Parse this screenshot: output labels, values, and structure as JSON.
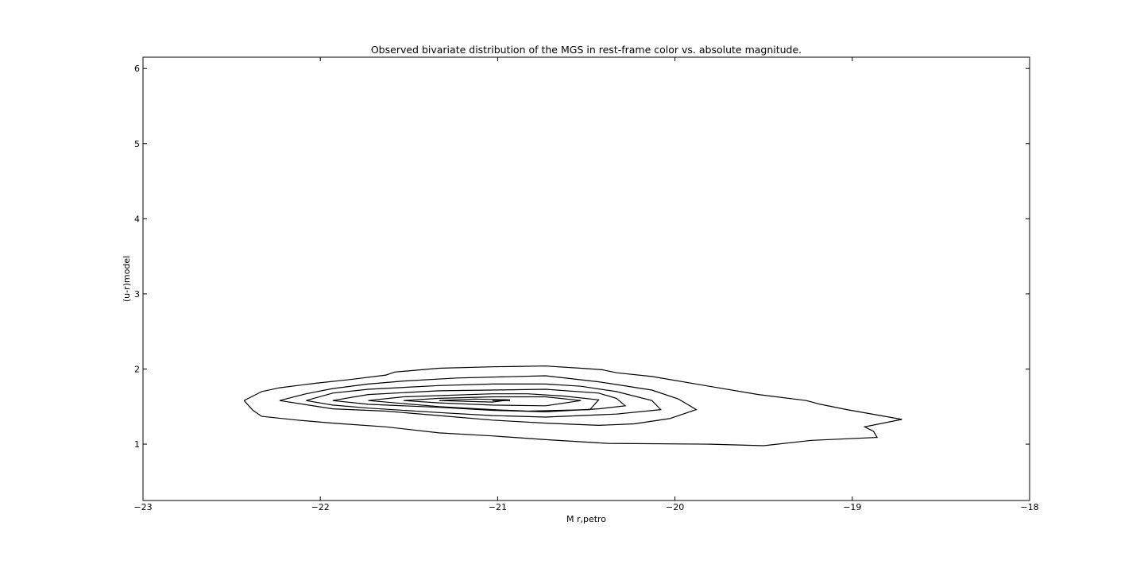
{
  "chart_data": {
    "type": "contour",
    "title": "Observed bivariate distribution of the MGS in rest-frame color vs. absolute magnitude.",
    "xlabel": "M r,petro",
    "ylabel": "(u-r)model",
    "xlim": [
      -23,
      -18
    ],
    "ylim": [
      0.25,
      6.15
    ],
    "xticks": [
      -23,
      -22,
      -21,
      -20,
      -19,
      -18
    ],
    "yticks": [
      1,
      2,
      3,
      4,
      5,
      6
    ],
    "xtick_labels": [
      "−23",
      "−22",
      "−21",
      "−20",
      "−19",
      "−18"
    ],
    "ytick_labels": [
      "1",
      "2",
      "3",
      "4",
      "5",
      "6"
    ],
    "grid": false,
    "series": [
      {
        "level": 1,
        "points": [
          [
            -22.43,
            1.58
          ],
          [
            -22.33,
            1.7
          ],
          [
            -22.23,
            1.75
          ],
          [
            -22.03,
            1.81
          ],
          [
            -21.83,
            1.86
          ],
          [
            -21.63,
            1.92
          ],
          [
            -21.58,
            1.96
          ],
          [
            -21.33,
            2.01
          ],
          [
            -21.03,
            2.03
          ],
          [
            -20.73,
            2.04
          ],
          [
            -20.53,
            2.01
          ],
          [
            -20.41,
            1.99
          ],
          [
            -20.33,
            1.95
          ],
          [
            -20.13,
            1.9
          ],
          [
            -19.83,
            1.78
          ],
          [
            -19.53,
            1.66
          ],
          [
            -19.26,
            1.58
          ],
          [
            -19.18,
            1.53
          ],
          [
            -19.03,
            1.46
          ],
          [
            -18.72,
            1.33
          ],
          [
            -18.93,
            1.23
          ],
          [
            -18.88,
            1.17
          ],
          [
            -18.86,
            1.09
          ],
          [
            -19.23,
            1.05
          ],
          [
            -19.5,
            0.98
          ],
          [
            -19.8,
            1.0
          ],
          [
            -20.38,
            1.01
          ],
          [
            -20.73,
            1.06
          ],
          [
            -21.03,
            1.11
          ],
          [
            -21.33,
            1.15
          ],
          [
            -21.63,
            1.23
          ],
          [
            -21.93,
            1.28
          ],
          [
            -22.13,
            1.32
          ],
          [
            -22.33,
            1.37
          ],
          [
            -22.38,
            1.45
          ],
          [
            -22.43,
            1.58
          ]
        ]
      },
      {
        "level": 2,
        "points": [
          [
            -22.23,
            1.58
          ],
          [
            -22.08,
            1.67
          ],
          [
            -21.93,
            1.74
          ],
          [
            -21.73,
            1.8
          ],
          [
            -21.53,
            1.84
          ],
          [
            -21.23,
            1.88
          ],
          [
            -20.73,
            1.91
          ],
          [
            -20.43,
            1.83
          ],
          [
            -20.13,
            1.72
          ],
          [
            -19.98,
            1.6
          ],
          [
            -19.88,
            1.46
          ],
          [
            -20.03,
            1.34
          ],
          [
            -20.23,
            1.27
          ],
          [
            -20.43,
            1.25
          ],
          [
            -20.73,
            1.28
          ],
          [
            -21.03,
            1.32
          ],
          [
            -21.33,
            1.38
          ],
          [
            -21.63,
            1.44
          ],
          [
            -21.93,
            1.47
          ],
          [
            -22.23,
            1.58
          ]
        ]
      },
      {
        "level": 3,
        "points": [
          [
            -22.08,
            1.58
          ],
          [
            -21.93,
            1.68
          ],
          [
            -21.73,
            1.73
          ],
          [
            -21.33,
            1.78
          ],
          [
            -21.03,
            1.8
          ],
          [
            -20.73,
            1.8
          ],
          [
            -20.53,
            1.77
          ],
          [
            -20.33,
            1.7
          ],
          [
            -20.13,
            1.58
          ],
          [
            -20.08,
            1.46
          ],
          [
            -20.33,
            1.4
          ],
          [
            -20.73,
            1.36
          ],
          [
            -21.03,
            1.38
          ],
          [
            -21.33,
            1.42
          ],
          [
            -21.73,
            1.48
          ],
          [
            -21.93,
            1.52
          ],
          [
            -22.08,
            1.58
          ]
        ]
      },
      {
        "level": 4,
        "points": [
          [
            -21.93,
            1.58
          ],
          [
            -21.73,
            1.66
          ],
          [
            -21.33,
            1.71
          ],
          [
            -20.73,
            1.73
          ],
          [
            -20.43,
            1.68
          ],
          [
            -20.33,
            1.61
          ],
          [
            -20.28,
            1.51
          ],
          [
            -20.43,
            1.47
          ],
          [
            -20.73,
            1.43
          ],
          [
            -21.03,
            1.45
          ],
          [
            -21.33,
            1.49
          ],
          [
            -21.73,
            1.53
          ],
          [
            -21.93,
            1.58
          ]
        ]
      },
      {
        "level": 5,
        "points": [
          [
            -21.73,
            1.58
          ],
          [
            -21.53,
            1.63
          ],
          [
            -21.03,
            1.67
          ],
          [
            -20.83,
            1.67
          ],
          [
            -20.63,
            1.64
          ],
          [
            -20.43,
            1.59
          ],
          [
            -20.48,
            1.46
          ],
          [
            -20.83,
            1.44
          ],
          [
            -21.03,
            1.46
          ],
          [
            -21.33,
            1.5
          ],
          [
            -21.73,
            1.58
          ]
        ]
      },
      {
        "level": 6,
        "points": [
          [
            -21.53,
            1.58
          ],
          [
            -21.33,
            1.61
          ],
          [
            -21.03,
            1.63
          ],
          [
            -20.73,
            1.63
          ],
          [
            -20.53,
            1.58
          ],
          [
            -20.73,
            1.51
          ],
          [
            -21.03,
            1.52
          ],
          [
            -21.33,
            1.55
          ],
          [
            -21.53,
            1.58
          ]
        ]
      },
      {
        "level": 7,
        "points": [
          [
            -21.33,
            1.58
          ],
          [
            -21.13,
            1.6
          ],
          [
            -20.93,
            1.59
          ],
          [
            -21.03,
            1.56
          ],
          [
            -21.33,
            1.58
          ]
        ]
      },
      {
        "level": 8,
        "points": [
          [
            -21.03,
            1.58
          ],
          [
            -20.93,
            1.58
          ]
        ]
      }
    ]
  }
}
